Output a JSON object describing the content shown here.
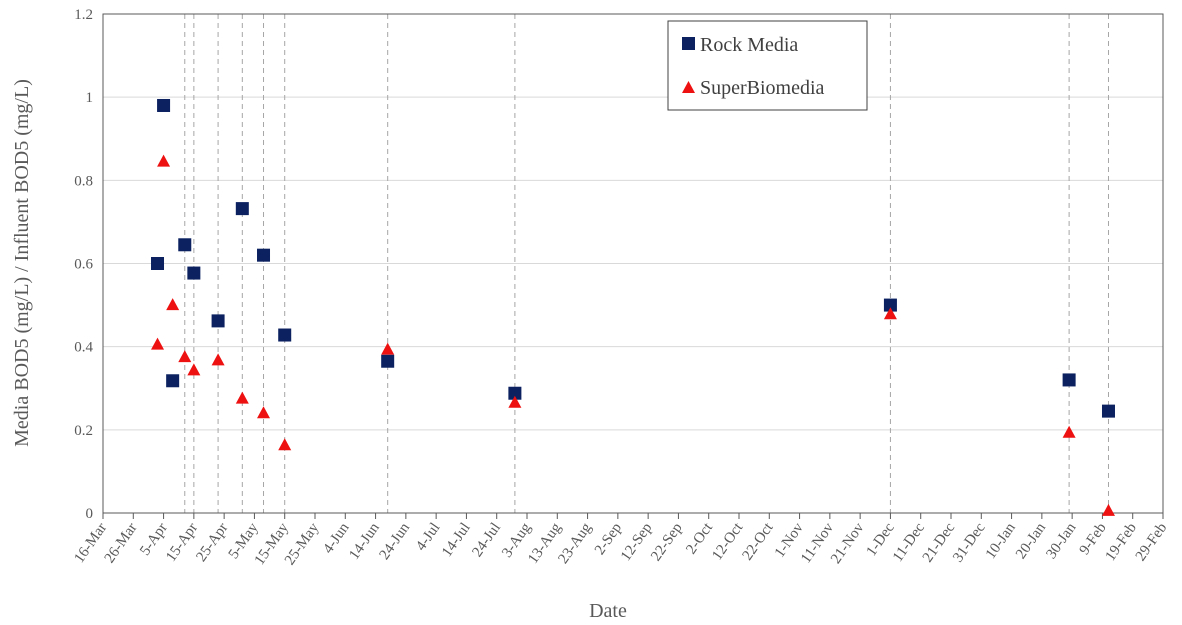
{
  "chart_data": {
    "type": "scatter",
    "xlabel": "Date",
    "ylabel": "Media BOD5 (mg/L) / Influent BOD5 (mg/L)",
    "x_axis_type": "date",
    "xlim": [
      "2020-03-16",
      "2021-03-01"
    ],
    "ylim": [
      0,
      1.2
    ],
    "y_ticks": [
      "0",
      "0.2",
      "0.4",
      "0.6",
      "0.8",
      "1",
      "1.2"
    ],
    "x_ticks": [
      {
        "date": "2020-03-16",
        "label": "16-Mar"
      },
      {
        "date": "2020-03-26",
        "label": "26-Mar"
      },
      {
        "date": "2020-04-05",
        "label": "5-Apr"
      },
      {
        "date": "2020-04-15",
        "label": "15-Apr"
      },
      {
        "date": "2020-04-25",
        "label": "25-Apr"
      },
      {
        "date": "2020-05-05",
        "label": "5-May"
      },
      {
        "date": "2020-05-15",
        "label": "15-May"
      },
      {
        "date": "2020-05-25",
        "label": "25-May"
      },
      {
        "date": "2020-06-04",
        "label": "4-Jun"
      },
      {
        "date": "2020-06-14",
        "label": "14-Jun"
      },
      {
        "date": "2020-06-24",
        "label": "24-Jun"
      },
      {
        "date": "2020-07-04",
        "label": "4-Jul"
      },
      {
        "date": "2020-07-14",
        "label": "14-Jul"
      },
      {
        "date": "2020-07-24",
        "label": "24-Jul"
      },
      {
        "date": "2020-08-03",
        "label": "3-Aug"
      },
      {
        "date": "2020-08-13",
        "label": "13-Aug"
      },
      {
        "date": "2020-08-23",
        "label": "23-Aug"
      },
      {
        "date": "2020-09-02",
        "label": "2-Sep"
      },
      {
        "date": "2020-09-12",
        "label": "12-Sep"
      },
      {
        "date": "2020-09-22",
        "label": "22-Sep"
      },
      {
        "date": "2020-10-02",
        "label": "2-Oct"
      },
      {
        "date": "2020-10-12",
        "label": "12-Oct"
      },
      {
        "date": "2020-10-22",
        "label": "22-Oct"
      },
      {
        "date": "2020-11-01",
        "label": "1-Nov"
      },
      {
        "date": "2020-11-11",
        "label": "11-Nov"
      },
      {
        "date": "2020-11-21",
        "label": "21-Nov"
      },
      {
        "date": "2020-12-01",
        "label": "1-Dec"
      },
      {
        "date": "2020-12-11",
        "label": "11-Dec"
      },
      {
        "date": "2020-12-21",
        "label": "21-Dec"
      },
      {
        "date": "2020-12-31",
        "label": "31-Dec"
      },
      {
        "date": "2021-01-10",
        "label": "10-Jan"
      },
      {
        "date": "2021-01-20",
        "label": "20-Jan"
      },
      {
        "date": "2021-01-30",
        "label": "30-Jan"
      },
      {
        "date": "2021-02-09",
        "label": "9-Feb"
      },
      {
        "date": "2021-02-19",
        "label": "19-Feb"
      },
      {
        "date": "2021-03-01",
        "label": "29-Feb"
      }
    ],
    "vertical_reference_lines": [
      "2020-04-12",
      "2020-04-15",
      "2020-04-23",
      "2020-05-01",
      "2020-05-08",
      "2020-05-15",
      "2020-06-18",
      "2020-07-30",
      "2020-12-01",
      "2021-01-29",
      "2021-02-11"
    ],
    "grid": {
      "horizontal": true,
      "vertical": false
    },
    "legend_position": "top-right",
    "series": [
      {
        "name": "Rock Media",
        "marker": "square",
        "color": "#0b2160",
        "points": [
          {
            "x": "2020-04-03",
            "y": 0.6
          },
          {
            "x": "2020-04-05",
            "y": 0.98
          },
          {
            "x": "2020-04-08",
            "y": 0.318
          },
          {
            "x": "2020-04-12",
            "y": 0.645
          },
          {
            "x": "2020-04-15",
            "y": 0.577
          },
          {
            "x": "2020-04-23",
            "y": 0.462
          },
          {
            "x": "2020-05-01",
            "y": 0.732
          },
          {
            "x": "2020-05-08",
            "y": 0.62
          },
          {
            "x": "2020-05-15",
            "y": 0.428
          },
          {
            "x": "2020-06-18",
            "y": 0.365
          },
          {
            "x": "2020-07-30",
            "y": 0.288
          },
          {
            "x": "2020-12-01",
            "y": 0.5
          },
          {
            "x": "2021-01-29",
            "y": 0.32
          },
          {
            "x": "2021-02-11",
            "y": 0.245
          }
        ]
      },
      {
        "name": "SuperBiomedia",
        "marker": "triangle",
        "color": "#ee1111",
        "points": [
          {
            "x": "2020-04-03",
            "y": 0.405
          },
          {
            "x": "2020-04-05",
            "y": 0.845
          },
          {
            "x": "2020-04-08",
            "y": 0.5
          },
          {
            "x": "2020-04-12",
            "y": 0.375
          },
          {
            "x": "2020-04-15",
            "y": 0.343
          },
          {
            "x": "2020-04-23",
            "y": 0.367
          },
          {
            "x": "2020-05-01",
            "y": 0.275
          },
          {
            "x": "2020-05-08",
            "y": 0.24
          },
          {
            "x": "2020-05-15",
            "y": 0.163
          },
          {
            "x": "2020-06-18",
            "y": 0.393
          },
          {
            "x": "2020-07-30",
            "y": 0.265
          },
          {
            "x": "2020-12-01",
            "y": 0.478
          },
          {
            "x": "2021-01-29",
            "y": 0.193
          },
          {
            "x": "2021-02-11",
            "y": 0.005
          }
        ]
      }
    ]
  }
}
